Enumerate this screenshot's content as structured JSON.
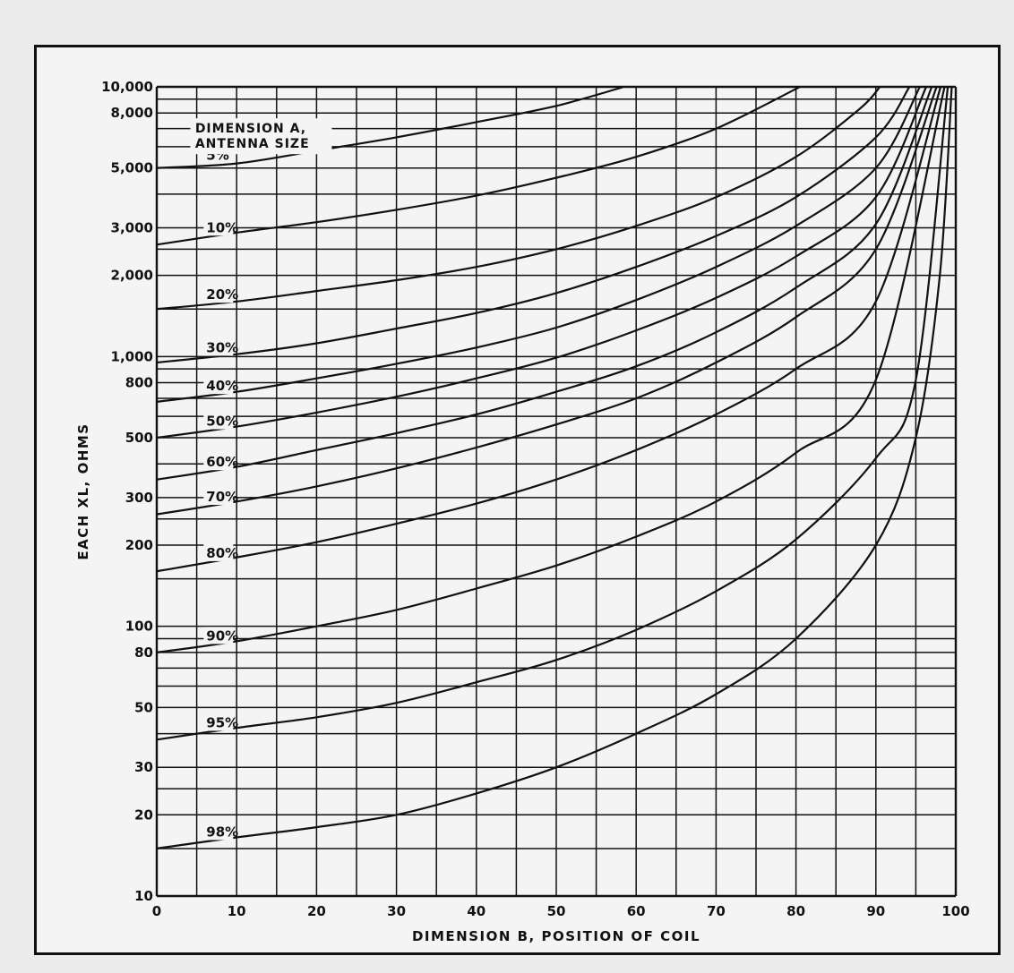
{
  "chart_data": {
    "type": "line",
    "xlabel": "DIMENSION B, POSITION OF COIL",
    "ylabel": "EACH XL, OHMS",
    "xlim": [
      0,
      100
    ],
    "ylim": [
      10,
      10000
    ],
    "y_scale": "log",
    "grid": true,
    "x_ticks": [
      {
        "value": 0,
        "label": "0"
      },
      {
        "value": 10,
        "label": "10"
      },
      {
        "value": 20,
        "label": "20"
      },
      {
        "value": 30,
        "label": "30"
      },
      {
        "value": 40,
        "label": "40"
      },
      {
        "value": 50,
        "label": "50"
      },
      {
        "value": 60,
        "label": "60"
      },
      {
        "value": 70,
        "label": "70"
      },
      {
        "value": 80,
        "label": "80"
      },
      {
        "value": 90,
        "label": "90"
      },
      {
        "value": 100,
        "label": "100"
      }
    ],
    "y_ticks": [
      {
        "value": 10,
        "label": "10"
      },
      {
        "value": 20,
        "label": "20"
      },
      {
        "value": 30,
        "label": "30"
      },
      {
        "value": 50,
        "label": "50"
      },
      {
        "value": 80,
        "label": "80"
      },
      {
        "value": 100,
        "label": "100"
      },
      {
        "value": 200,
        "label": "200"
      },
      {
        "value": 300,
        "label": "300"
      },
      {
        "value": 500,
        "label": "500"
      },
      {
        "value": 800,
        "label": "800"
      },
      {
        "value": 1000,
        "label": "1,000"
      },
      {
        "value": 2000,
        "label": "2,000"
      },
      {
        "value": 3000,
        "label": "3,000"
      },
      {
        "value": 5000,
        "label": "5,000"
      },
      {
        "value": 8000,
        "label": "8,000"
      },
      {
        "value": 10000,
        "label": "10,000"
      }
    ],
    "x_grid": [
      0,
      5,
      10,
      15,
      20,
      25,
      30,
      35,
      40,
      45,
      50,
      55,
      60,
      65,
      70,
      75,
      80,
      85,
      90,
      95,
      100
    ],
    "y_grid": [
      10,
      15,
      20,
      25,
      30,
      40,
      50,
      60,
      70,
      80,
      90,
      100,
      150,
      200,
      250,
      300,
      400,
      500,
      600,
      700,
      800,
      900,
      1000,
      1500,
      2000,
      2500,
      3000,
      4000,
      5000,
      6000,
      7000,
      8000,
      9000,
      10000
    ],
    "legend_title": [
      "DIMENSION A,",
      "ANTENNA SIZE"
    ],
    "series": [
      {
        "name": "5%",
        "label": "5%",
        "x": [
          0,
          10,
          20,
          30,
          40,
          50,
          58.5
        ],
        "y": [
          5000,
          5200,
          5800,
          6500,
          7400,
          8500,
          10000
        ]
      },
      {
        "name": "10%",
        "label": "10%",
        "x": [
          0,
          10,
          20,
          30,
          40,
          50,
          60,
          70,
          80.5
        ],
        "y": [
          2600,
          2880,
          3150,
          3500,
          3950,
          4600,
          5500,
          7000,
          10000
        ]
      },
      {
        "name": "20%",
        "label": "20%",
        "x": [
          0,
          10,
          20,
          30,
          40,
          50,
          60,
          70,
          80,
          88,
          90.5
        ],
        "y": [
          1500,
          1600,
          1750,
          1920,
          2150,
          2500,
          3050,
          3900,
          5500,
          8300,
          10000
        ]
      },
      {
        "name": "30%",
        "label": "30%",
        "x": [
          0,
          10,
          20,
          30,
          40,
          50,
          60,
          70,
          80,
          90,
          94.2
        ],
        "y": [
          950,
          1020,
          1120,
          1270,
          1450,
          1720,
          2150,
          2800,
          3900,
          6500,
          10000
        ]
      },
      {
        "name": "40%",
        "label": "40%",
        "x": [
          0,
          10,
          20,
          30,
          40,
          50,
          60,
          70,
          80,
          90,
          95.5
        ],
        "y": [
          680,
          740,
          830,
          940,
          1080,
          1280,
          1620,
          2150,
          3050,
          5000,
          10000
        ]
      },
      {
        "name": "50%",
        "label": "50%",
        "x": [
          0,
          10,
          20,
          30,
          40,
          50,
          60,
          70,
          80,
          90,
          96.3
        ],
        "y": [
          500,
          550,
          620,
          710,
          830,
          990,
          1250,
          1650,
          2350,
          3900,
          10000
        ]
      },
      {
        "name": "60%",
        "label": "60%",
        "x": [
          0,
          10,
          20,
          30,
          40,
          50,
          60,
          70,
          80,
          90,
          97
        ],
        "y": [
          350,
          390,
          450,
          520,
          610,
          740,
          920,
          1230,
          1800,
          3100,
          10000
        ]
      },
      {
        "name": "70%",
        "label": "70%",
        "x": [
          0,
          10,
          20,
          30,
          40,
          50,
          60,
          70,
          80,
          90,
          97.6
        ],
        "y": [
          260,
          290,
          330,
          385,
          460,
          560,
          700,
          950,
          1400,
          2500,
          10000
        ]
      },
      {
        "name": "80%",
        "label": "80%",
        "x": [
          0,
          10,
          20,
          30,
          40,
          50,
          60,
          70,
          80,
          90,
          98.1
        ],
        "y": [
          160,
          180,
          205,
          240,
          285,
          350,
          450,
          610,
          900,
          1600,
          10000
        ]
      },
      {
        "name": "90%",
        "label": "90%",
        "x": [
          0,
          10,
          20,
          30,
          40,
          50,
          60,
          70,
          80,
          90,
          98.6
        ],
        "y": [
          80,
          88,
          100,
          115,
          138,
          168,
          215,
          290,
          440,
          820,
          10000
        ]
      },
      {
        "name": "95%",
        "label": "95%",
        "x": [
          0,
          10,
          20,
          30,
          40,
          50,
          60,
          70,
          80,
          90,
          95,
          99
        ],
        "y": [
          38,
          42,
          46,
          52,
          62,
          75,
          97,
          135,
          210,
          420,
          820,
          10000
        ]
      },
      {
        "name": "98%",
        "label": "98%",
        "x": [
          0,
          10,
          20,
          30,
          40,
          50,
          60,
          70,
          80,
          90,
          95,
          98,
          99.5
        ],
        "y": [
          15,
          16.5,
          18,
          20,
          24,
          30,
          40,
          56,
          90,
          200,
          500,
          2000,
          10000
        ]
      }
    ]
  }
}
